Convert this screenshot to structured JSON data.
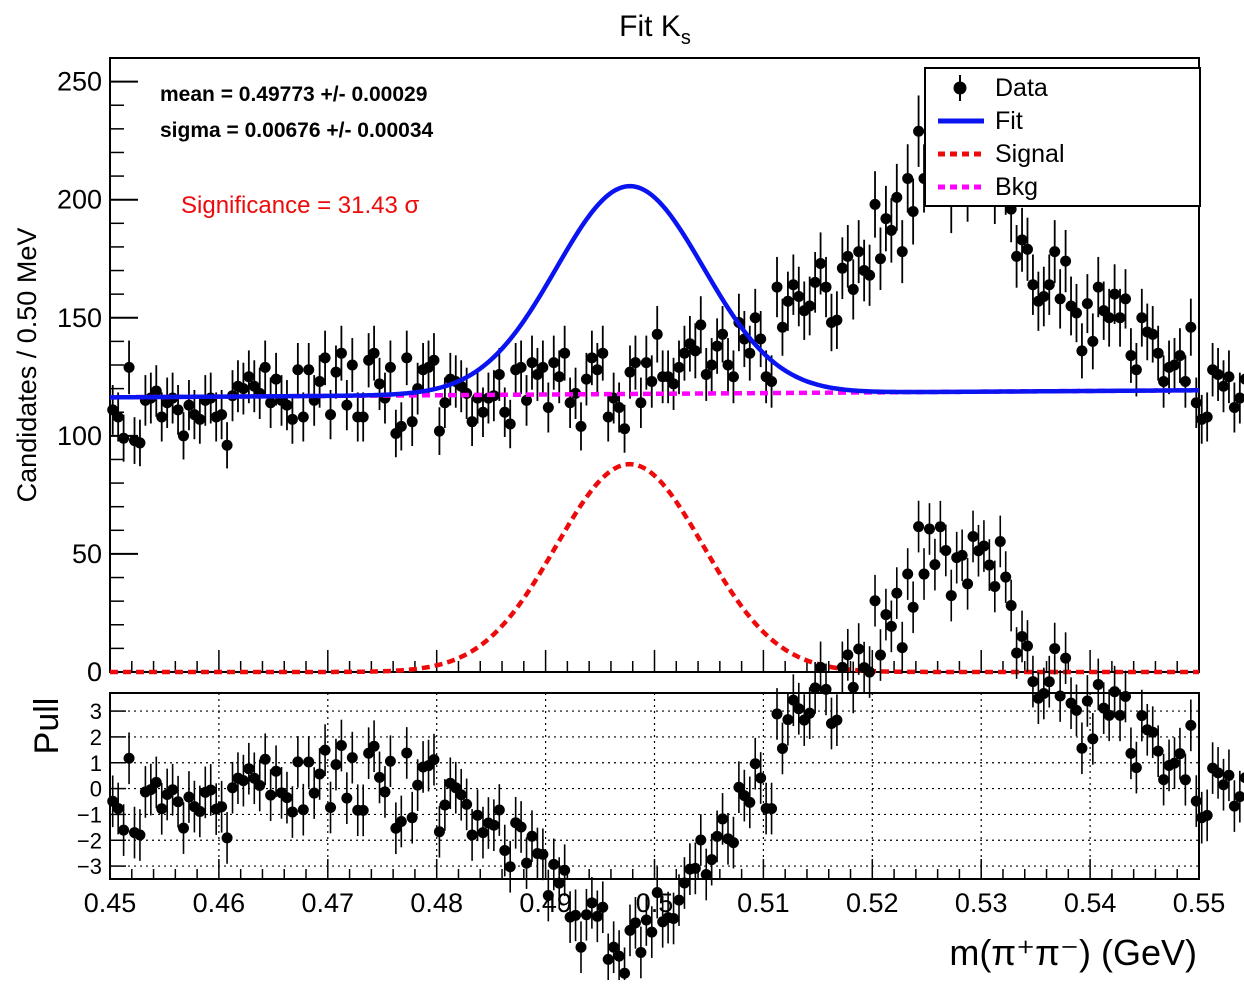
{
  "title": "Fit K",
  "title_sub": "s",
  "chart_data": [
    {
      "type": "scatter",
      "ylabel": "Candidates / 0.50 MeV",
      "xlim": [
        0.45,
        0.55
      ],
      "ylim": [
        0,
        260
      ],
      "yticks": [
        0,
        50,
        100,
        150,
        200,
        250
      ],
      "annotations": {
        "mean": "mean =  0.49773 +/- 0.00029",
        "sigma": "sigma =  0.00676 +/- 0.00034",
        "significance": "Significance = 31.43 σ"
      },
      "legend": {
        "placement": "top-right",
        "entries": [
          {
            "label": "Data",
            "style": "marker",
            "color": "#000000"
          },
          {
            "label": "Fit",
            "style": "solid",
            "color": "#0a14f0"
          },
          {
            "label": "Signal",
            "style": "dashed",
            "color": "#ee0a0a"
          },
          {
            "label": "Bkg",
            "style": "dashed",
            "color": "#ff00ff"
          }
        ]
      },
      "fit_model": {
        "signal_peak": 88,
        "signal_mean": 0.49773,
        "signal_sigma": 0.00676,
        "bkg_intercept": 116.3,
        "bkg_slope": 30
      },
      "data": {
        "x_start": 0.45025,
        "bin_width": 0.0005,
        "y": [
          111,
          108,
          99,
          129,
          98,
          97,
          115,
          116,
          119,
          108,
          114,
          116,
          111,
          100,
          113,
          109,
          107,
          115,
          116,
          108,
          109,
          96,
          117,
          121,
          120,
          125,
          121,
          118,
          129,
          114,
          124,
          115,
          113,
          107,
          128,
          108,
          128,
          115,
          123,
          133,
          109,
          127,
          135,
          113,
          130,
          108,
          108,
          132,
          135,
          122,
          116,
          129,
          101,
          104,
          133,
          106,
          120,
          128,
          129,
          132,
          102,
          114,
          124,
          123,
          121,
          118,
          106,
          116,
          110,
          116,
          117,
          126,
          110,
          105,
          128,
          129,
          115,
          131,
          126,
          129,
          112,
          131,
          125,
          135,
          114,
          118,
          104,
          124,
          133,
          128,
          135,
          108,
          116,
          112,
          103,
          127,
          131,
          114,
          131,
          123,
          143,
          125,
          125,
          122,
          129,
          135,
          139,
          136,
          147,
          126,
          130,
          138,
          143,
          130,
          125,
          148,
          141,
          135,
          150,
          141,
          125,
          123,
          163,
          146,
          157,
          164,
          159,
          153,
          155,
          165,
          173,
          163,
          148,
          149,
          171,
          176,
          162,
          178,
          170,
          168,
          198,
          175,
          192,
          187,
          201,
          178,
          209,
          195,
          229,
          209,
          228,
          213,
          229,
          219,
          200,
          216,
          217,
          205,
          225,
          219,
          221,
          213,
          204,
          223,
          208,
          196,
          176,
          183,
          179,
          164,
          157,
          159,
          164,
          178,
          158,
          174,
          155,
          152,
          136,
          156,
          140,
          163,
          153,
          150,
          160,
          150,
          158,
          134,
          128,
          150,
          144,
          143,
          135,
          123,
          129,
          130,
          134,
          123,
          146,
          114,
          107,
          108,
          128,
          126,
          121,
          125,
          112,
          116,
          124,
          108,
          115,
          113,
          116,
          119,
          123,
          113,
          109,
          132,
          120,
          111,
          125,
          110,
          131,
          108,
          118,
          108,
          126,
          117,
          112,
          126,
          116,
          100,
          118,
          112,
          122,
          131,
          105,
          117,
          110,
          118,
          120,
          113,
          103,
          108,
          110,
          103,
          107,
          116,
          112,
          95,
          134,
          133,
          107,
          122,
          113,
          125,
          120,
          103,
          113,
          106,
          134,
          115,
          112,
          116,
          108,
          123,
          116,
          120,
          115,
          102,
          120,
          116,
          116,
          118,
          112,
          108,
          104,
          103,
          135,
          124,
          118,
          124,
          125,
          118,
          109,
          115,
          135,
          119,
          111,
          118,
          133,
          116,
          124,
          122,
          115,
          105,
          118,
          124,
          120,
          108,
          132,
          127,
          120,
          126,
          123,
          121,
          119,
          114,
          113,
          120,
          126,
          116,
          124,
          104,
          111,
          124,
          114,
          121,
          118,
          117,
          94,
          121,
          110,
          125,
          115,
          120,
          114,
          117,
          112,
          128,
          132,
          120,
          121,
          116,
          122,
          113,
          111,
          119,
          123,
          113,
          116,
          128,
          118,
          115,
          119,
          111,
          119,
          108,
          110,
          111,
          106,
          127,
          124,
          117,
          115,
          122,
          114,
          111,
          119,
          124,
          122,
          110,
          119,
          110,
          114,
          129,
          119
        ]
      }
    },
    {
      "type": "scatter",
      "ylabel": "Pull",
      "xlabel": "m(π⁺π⁻) (GeV)",
      "xlim": [
        0.45,
        0.55
      ],
      "ylim": [
        -3.5,
        3.7
      ],
      "yticks": [
        -3,
        -2,
        -1,
        0,
        1,
        2,
        3
      ],
      "xticks": [
        "0.45",
        "0.46",
        "0.47",
        "0.48",
        "0.49",
        "0.5",
        "0.51",
        "0.52",
        "0.53",
        "0.54",
        "0.55"
      ],
      "reference_lines": [
        -3,
        -2,
        -1,
        0,
        1,
        2,
        3
      ],
      "pulls_from": "residuals of data over fit, divided by sqrt(fit)"
    }
  ]
}
